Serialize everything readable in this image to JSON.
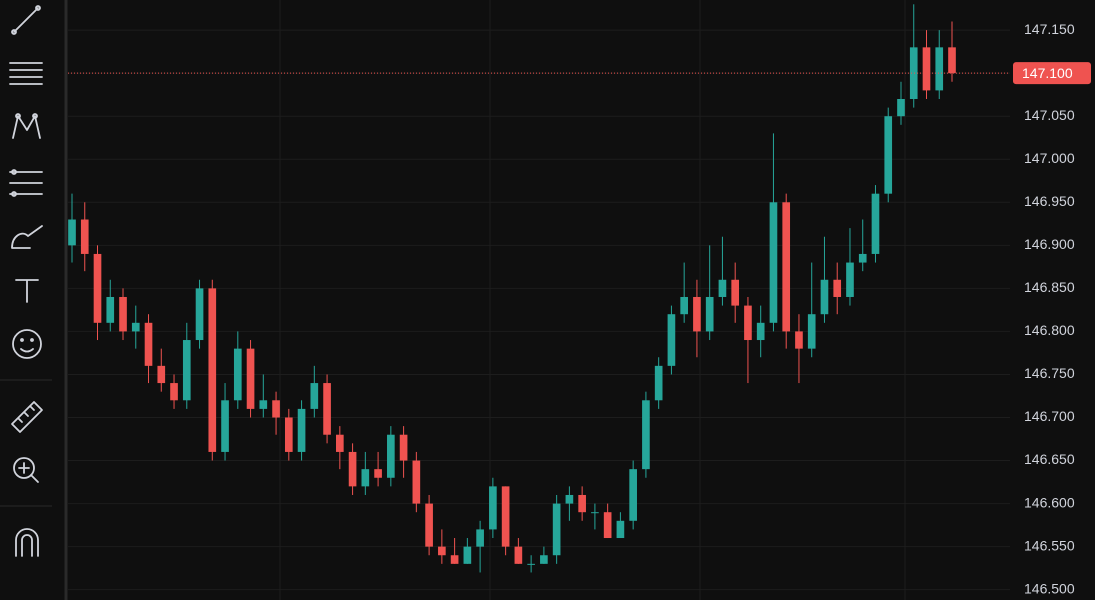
{
  "chart_data": {
    "type": "candlestick",
    "up_color": "#26a69a",
    "down_color": "#ef5350",
    "open": [
      146.9,
      146.93,
      146.89,
      146.81,
      146.84,
      146.8,
      146.81,
      146.76,
      146.74,
      146.72,
      146.79,
      146.85,
      146.66,
      146.72,
      146.78,
      146.71,
      146.72,
      146.7,
      146.66,
      146.71,
      146.74,
      146.68,
      146.66,
      146.62,
      146.64,
      146.63,
      146.68,
      146.65,
      146.6,
      146.55,
      146.54,
      146.53,
      146.55,
      146.57,
      146.62,
      146.55,
      146.53,
      146.53,
      146.54,
      146.6,
      146.61,
      146.59,
      146.59,
      146.56,
      146.58,
      146.64,
      146.72,
      146.76,
      146.82,
      146.84,
      146.8,
      146.84,
      146.86,
      146.83,
      146.79,
      146.81,
      146.95,
      146.8,
      146.78,
      146.82,
      146.86,
      146.84,
      146.88,
      146.89,
      146.96,
      147.05,
      147.07,
      147.13,
      147.08,
      147.13
    ],
    "high": [
      146.96,
      146.95,
      146.9,
      146.86,
      146.85,
      146.83,
      146.82,
      146.78,
      146.75,
      146.81,
      146.86,
      146.86,
      146.74,
      146.8,
      146.79,
      146.75,
      146.73,
      146.71,
      146.72,
      146.76,
      146.75,
      146.69,
      146.67,
      146.66,
      146.66,
      146.69,
      146.69,
      146.66,
      146.61,
      146.57,
      146.56,
      146.56,
      146.58,
      146.63,
      146.62,
      146.56,
      146.54,
      146.55,
      146.61,
      146.62,
      146.62,
      146.6,
      146.6,
      146.59,
      146.65,
      146.73,
      146.77,
      146.83,
      146.88,
      146.86,
      146.9,
      146.91,
      146.88,
      146.84,
      146.83,
      147.03,
      146.96,
      146.82,
      146.88,
      146.91,
      146.88,
      146.92,
      146.93,
      146.97,
      147.06,
      147.09,
      147.18,
      147.15,
      147.15,
      147.16
    ],
    "low": [
      146.88,
      146.87,
      146.79,
      146.8,
      146.79,
      146.78,
      146.74,
      146.73,
      146.71,
      146.71,
      146.78,
      146.65,
      146.65,
      146.71,
      146.7,
      146.7,
      146.68,
      146.65,
      146.65,
      146.7,
      146.67,
      146.64,
      146.61,
      146.61,
      146.62,
      146.62,
      146.63,
      146.59,
      146.54,
      146.53,
      146.53,
      146.53,
      146.52,
      146.56,
      146.54,
      146.53,
      146.52,
      146.53,
      146.53,
      146.58,
      146.58,
      146.57,
      146.56,
      146.56,
      146.57,
      146.63,
      146.71,
      146.75,
      146.81,
      146.77,
      146.79,
      146.83,
      146.81,
      146.74,
      146.77,
      146.8,
      146.78,
      146.74,
      146.77,
      146.81,
      146.82,
      146.83,
      146.87,
      146.88,
      146.95,
      147.04,
      147.06,
      147.07,
      147.07,
      147.09
    ],
    "close": [
      146.93,
      146.89,
      146.81,
      146.84,
      146.8,
      146.81,
      146.76,
      146.74,
      146.72,
      146.79,
      146.85,
      146.66,
      146.72,
      146.78,
      146.71,
      146.72,
      146.7,
      146.66,
      146.71,
      146.74,
      146.68,
      146.66,
      146.62,
      146.64,
      146.63,
      146.68,
      146.65,
      146.6,
      146.55,
      146.54,
      146.53,
      146.55,
      146.57,
      146.62,
      146.55,
      146.53,
      146.53,
      146.54,
      146.6,
      146.61,
      146.59,
      146.59,
      146.56,
      146.58,
      146.64,
      146.72,
      146.76,
      146.82,
      146.84,
      146.8,
      146.84,
      146.86,
      146.83,
      146.79,
      146.81,
      146.95,
      146.8,
      146.78,
      146.82,
      146.86,
      146.84,
      146.88,
      146.89,
      146.96,
      147.05,
      147.07,
      147.13,
      147.08,
      147.13,
      147.1
    ],
    "ylim": [
      146.488,
      147.185
    ],
    "yticks": [
      {
        "value": 146.5,
        "label": "146.500"
      },
      {
        "value": 146.55,
        "label": "146.550"
      },
      {
        "value": 146.6,
        "label": "146.600"
      },
      {
        "value": 146.65,
        "label": "146.650"
      },
      {
        "value": 146.7,
        "label": "146.700"
      },
      {
        "value": 146.75,
        "label": "146.750"
      },
      {
        "value": 146.8,
        "label": "146.800"
      },
      {
        "value": 146.85,
        "label": "146.850"
      },
      {
        "value": 146.9,
        "label": "146.900"
      },
      {
        "value": 146.95,
        "label": "146.950"
      },
      {
        "value": 147.0,
        "label": "147.000"
      },
      {
        "value": 147.05,
        "label": "147.050"
      },
      {
        "value": 147.1,
        "label": "147.100"
      },
      {
        "value": 147.15,
        "label": "147.150"
      }
    ],
    "current_price": {
      "value": 147.1,
      "label": "147.100"
    },
    "grid": true
  }
}
